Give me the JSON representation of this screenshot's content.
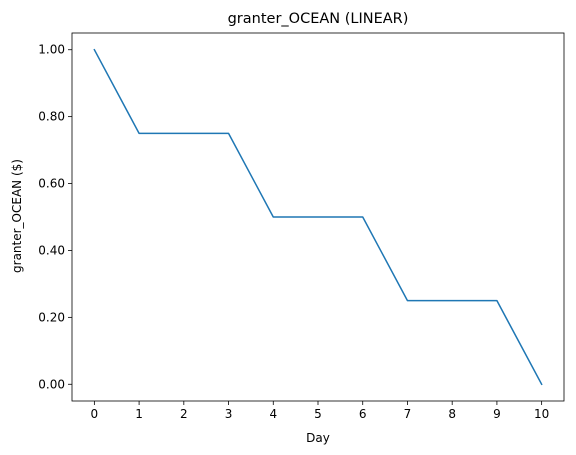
{
  "chart_data": {
    "type": "line",
    "title": "granter_OCEAN (LINEAR)",
    "xlabel": "Day",
    "ylabel": "granter_OCEAN ($)",
    "x": [
      0,
      1,
      2,
      3,
      4,
      5,
      6,
      7,
      8,
      9,
      10
    ],
    "series": [
      {
        "values": [
          1.0,
          0.75,
          0.75,
          0.75,
          0.5,
          0.5,
          0.5,
          0.25,
          0.25,
          0.25,
          0.0
        ],
        "color": "#1f77b4"
      }
    ],
    "xticks": [
      "0",
      "1",
      "2",
      "3",
      "4",
      "5",
      "6",
      "7",
      "8",
      "9",
      "10"
    ],
    "yticks": [
      "0.00",
      "0.20",
      "0.40",
      "0.60",
      "0.80",
      "1.00"
    ],
    "xlim": [
      -0.5,
      10.5
    ],
    "ylim": [
      -0.05,
      1.05
    ],
    "grid": false,
    "legend": "none"
  }
}
